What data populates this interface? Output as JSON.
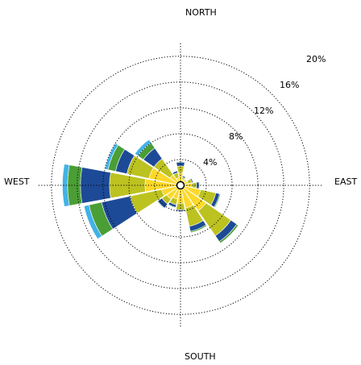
{
  "chart_data": {
    "type": "wind-rose",
    "direction_labels": {
      "north": "NORTH",
      "east": "EAST",
      "south": "SOUTH",
      "west": "WEST"
    },
    "radial_ticks": [
      {
        "value": 4,
        "label": "4%"
      },
      {
        "value": 8,
        "label": "8%"
      },
      {
        "value": 12,
        "label": "12%"
      },
      {
        "value": 16,
        "label": "16%"
      },
      {
        "value": 20,
        "label": "20%"
      }
    ],
    "radial_max": 22,
    "grid": true,
    "bin_colors": [
      "#ffffff",
      "#fcd82a",
      "#bcc21f",
      "#1d4a97",
      "#4a9e35",
      "#41b2e6"
    ],
    "directions_deg": [
      0,
      22.5,
      45,
      67.5,
      90,
      112.5,
      135,
      157.5,
      180,
      202.5,
      225,
      247.5,
      270,
      292.5,
      315,
      337.5
    ],
    "cumulative": [
      [
        0.5,
        2.0,
        3.0,
        3.6,
        3.7,
        3.7
      ],
      [
        0.5,
        1.0,
        1.3,
        1.5,
        1.55,
        1.55
      ],
      [
        0.5,
        0.9,
        1.1,
        1.2,
        1.25,
        1.25
      ],
      [
        0.5,
        1.2,
        1.8,
        2.0,
        2.05,
        2.05
      ],
      [
        0.5,
        1.8,
        2.5,
        2.9,
        3.0,
        3.0
      ],
      [
        0.5,
        3.2,
        5.6,
        6.2,
        6.35,
        6.35
      ],
      [
        0.5,
        4.8,
        9.5,
        10.6,
        10.9,
        10.9
      ],
      [
        0.5,
        3.6,
        6.5,
        7.3,
        7.5,
        7.5
      ],
      [
        0.5,
        2.8,
        3.8,
        4.0,
        4.05,
        4.05
      ],
      [
        0.5,
        2.2,
        3.1,
        3.5,
        3.6,
        3.6
      ],
      [
        0.5,
        2.6,
        3.5,
        4.3,
        4.4,
        4.4
      ],
      [
        0.5,
        3.0,
        8.0,
        12.5,
        14.5,
        15.3
      ],
      [
        0.5,
        5.5,
        11.0,
        15.5,
        17.5,
        18.3
      ],
      [
        0.5,
        5.0,
        8.5,
        10.3,
        11.5,
        12.0
      ],
      [
        0.5,
        2.0,
        5.0,
        7.0,
        8.0,
        8.6
      ],
      [
        0.5,
        1.2,
        2.0,
        2.3,
        2.35,
        2.35
      ]
    ]
  }
}
